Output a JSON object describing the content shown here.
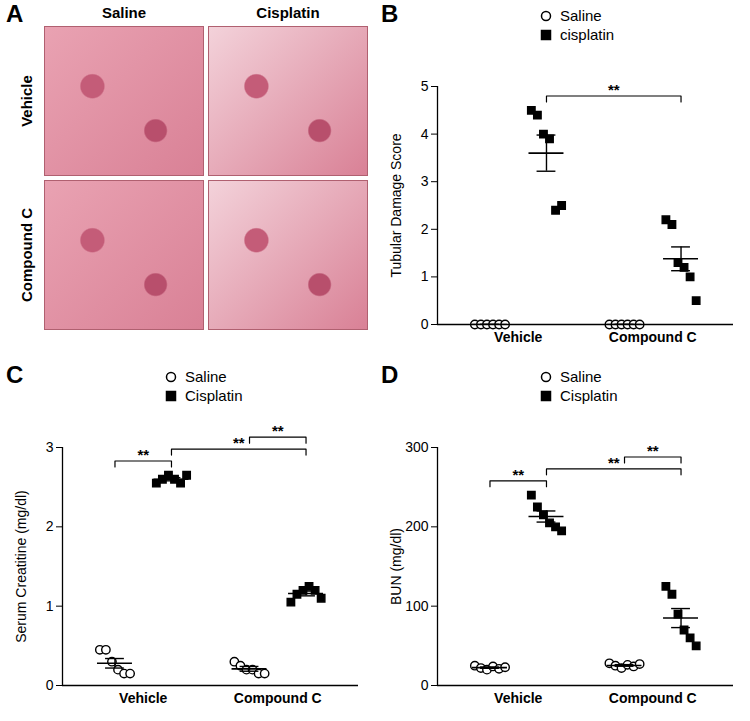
{
  "image_panel": {
    "panel": "A",
    "columns": [
      "Saline",
      "Cisplatin"
    ],
    "rows": [
      "Vehicle",
      "Compound C"
    ]
  },
  "chart_data": [
    {
      "panel": "B",
      "type": "scatter",
      "y_label": "Tubular Damage Score",
      "categories": [
        "Vehicle",
        "Compound C"
      ],
      "ylim": [
        0,
        5
      ],
      "yticks": [
        0,
        1,
        2,
        3,
        4,
        5
      ],
      "legend": "top",
      "series": [
        {
          "name": "Saline",
          "color": "#000000",
          "marker": "circle-open",
          "values": [
            [
              0,
              0,
              0,
              0,
              0,
              0
            ],
            [
              0,
              0,
              0,
              0,
              0,
              0
            ]
          ],
          "mean": [
            0,
            0
          ],
          "sem": [
            0,
            0
          ]
        },
        {
          "name": "cisplatin",
          "color": "#000000",
          "marker": "square",
          "values": [
            [
              4.5,
              4.4,
              4.0,
              3.9,
              2.4,
              2.5
            ],
            [
              2.2,
              2.1,
              1.3,
              1.2,
              1.0,
              0.5
            ]
          ],
          "mean": [
            3.6,
            1.38
          ],
          "sem": [
            0.38,
            0.25
          ]
        }
      ],
      "annotations": [
        {
          "text": "**",
          "from": {
            "series": "cisplatin",
            "category": "Vehicle"
          },
          "to": {
            "series": "cisplatin",
            "category": "Compound C"
          }
        }
      ]
    },
    {
      "panel": "C",
      "type": "scatter",
      "y_label": "Serum Creatitine (mg/dl)",
      "categories": [
        "Vehicle",
        "Compound C"
      ],
      "ylim": [
        0,
        3
      ],
      "yticks": [
        0,
        1,
        2,
        3
      ],
      "legend": "top",
      "series": [
        {
          "name": "Saline",
          "color": "#000000",
          "marker": "circle-open",
          "values": [
            [
              0.45,
              0.45,
              0.3,
              0.2,
              0.15,
              0.15
            ],
            [
              0.3,
              0.25,
              0.2,
              0.2,
              0.15,
              0.15
            ]
          ],
          "mean": [
            0.28,
            0.21
          ],
          "sem": [
            0.06,
            0.03
          ]
        },
        {
          "name": "Cisplatin",
          "color": "#000000",
          "marker": "square",
          "values": [
            [
              2.55,
              2.6,
              2.65,
              2.6,
              2.55,
              2.65
            ],
            [
              1.05,
              1.15,
              1.2,
              1.25,
              1.2,
              1.1
            ]
          ],
          "mean": [
            2.6,
            1.16
          ],
          "sem": [
            0.02,
            0.03
          ]
        }
      ],
      "annotations": [
        {
          "text": "**",
          "from": {
            "series": "Saline",
            "category": "Vehicle"
          },
          "to": {
            "series": "Cisplatin",
            "category": "Vehicle"
          }
        },
        {
          "text": "**",
          "from": {
            "series": "Cisplatin",
            "category": "Vehicle"
          },
          "to": {
            "series": "Cisplatin",
            "category": "Compound C"
          }
        },
        {
          "text": "**",
          "from": {
            "series": "Saline",
            "category": "Compound C"
          },
          "to": {
            "series": "Cisplatin",
            "category": "Compound C"
          }
        }
      ]
    },
    {
      "panel": "D",
      "type": "scatter",
      "y_label": "BUN (mg/dl)",
      "categories": [
        "Vehicle",
        "Compound C"
      ],
      "ylim": [
        0,
        300
      ],
      "yticks": [
        0,
        100,
        200,
        300
      ],
      "legend": "top",
      "series": [
        {
          "name": "Saline",
          "color": "#000000",
          "marker": "circle-open",
          "values": [
            [
              25,
              22,
              20,
              24,
              21,
              23
            ],
            [
              28,
              25,
              22,
              26,
              24,
              27
            ]
          ],
          "mean": [
            22.5,
            25.3
          ],
          "sem": [
            0.8,
            1
          ]
        },
        {
          "name": "Cisplatin",
          "color": "#000000",
          "marker": "square",
          "values": [
            [
              240,
              225,
              215,
              205,
              200,
              195
            ],
            [
              125,
              115,
              90,
              70,
              60,
              50
            ]
          ],
          "mean": [
            213,
            85
          ],
          "sem": [
            7,
            12
          ]
        }
      ],
      "annotations": [
        {
          "text": "**",
          "from": {
            "series": "Saline",
            "category": "Vehicle"
          },
          "to": {
            "series": "Cisplatin",
            "category": "Vehicle"
          }
        },
        {
          "text": "**",
          "from": {
            "series": "Cisplatin",
            "category": "Vehicle"
          },
          "to": {
            "series": "Cisplatin",
            "category": "Compound C"
          }
        },
        {
          "text": "**",
          "from": {
            "series": "Saline",
            "category": "Compound C"
          },
          "to": {
            "series": "Cisplatin",
            "category": "Compound C"
          }
        }
      ]
    }
  ]
}
